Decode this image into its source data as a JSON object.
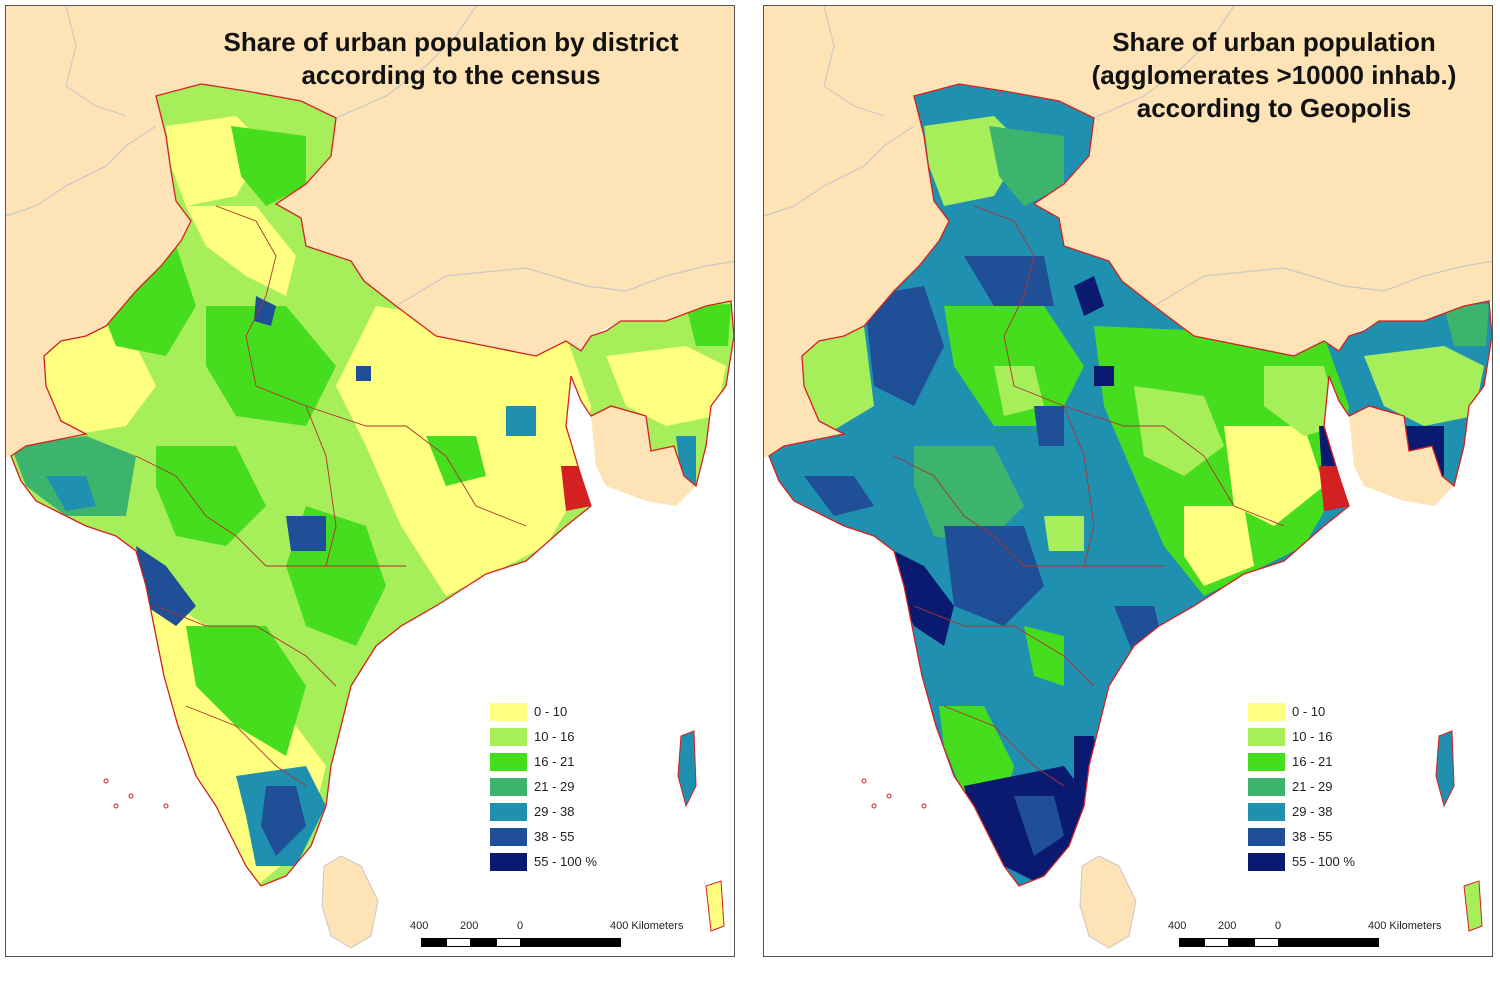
{
  "colors": {
    "land": "#fde3b5",
    "sea": "#ffffff",
    "neighbor_border": "#c8c8c8",
    "state_border": "#d42020"
  },
  "panels": [
    {
      "title_lines": [
        "Share of urban population by district",
        "according to the census"
      ],
      "legend": [
        {
          "label": "0 - 10",
          "color": "#ffff80"
        },
        {
          "label": "10 - 16",
          "color": "#a6ee5a"
        },
        {
          "label": "16 - 21",
          "color": "#46dd1e"
        },
        {
          "label": "21 - 29",
          "color": "#3cb46e"
        },
        {
          "label": "29 - 38",
          "color": "#2090b0"
        },
        {
          "label": "38 - 55",
          "color": "#1f4f96"
        },
        {
          "label": "55 - 100 %",
          "color": "#0a1a70"
        }
      ],
      "scale": {
        "ticks": [
          "400",
          "200",
          "0",
          "400 Kilometers"
        ]
      }
    },
    {
      "title_lines": [
        "Share of urban population",
        "(agglomerates >10000 inhab.)",
        "according to Geopolis"
      ],
      "legend": [
        {
          "label": "0 - 10",
          "color": "#ffff80"
        },
        {
          "label": "10 - 16",
          "color": "#a6ee5a"
        },
        {
          "label": "16 - 21",
          "color": "#46dd1e"
        },
        {
          "label": "21 - 29",
          "color": "#3cb46e"
        },
        {
          "label": "29 - 38",
          "color": "#2090b0"
        },
        {
          "label": "38 - 55",
          "color": "#1f4f96"
        },
        {
          "label": "55 - 100 %",
          "color": "#0a1a70"
        }
      ],
      "scale": {
        "ticks": [
          "400",
          "200",
          "0",
          "400 Kilometers"
        ]
      }
    }
  ]
}
